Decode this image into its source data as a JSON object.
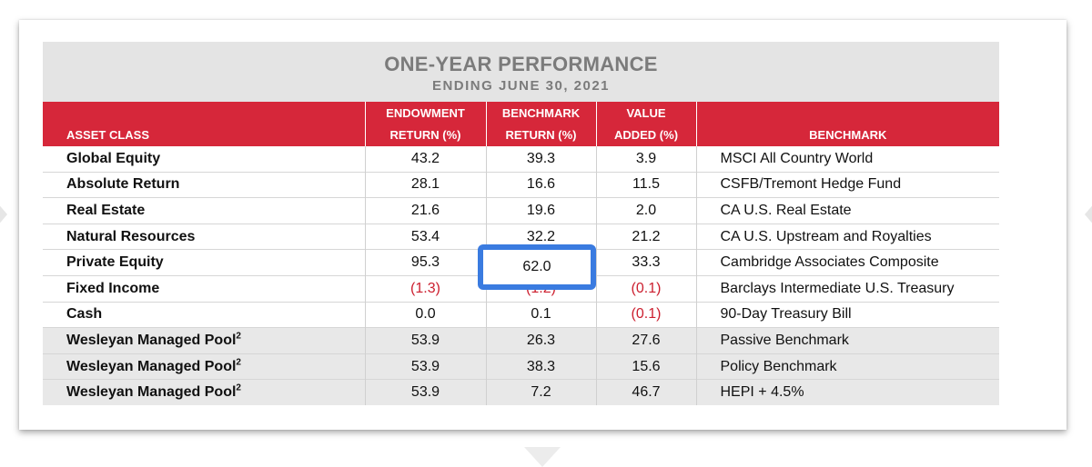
{
  "table": {
    "title": "ONE-YEAR PERFORMANCE",
    "subtitle": "ENDING JUNE 30, 2021",
    "headers": [
      [
        "ASSET CLASS"
      ],
      [
        "ENDOWMENT",
        "RETURN (%)"
      ],
      [
        "BENCHMARK",
        "RETURN (%)"
      ],
      [
        "VALUE",
        "ADDED (%)"
      ],
      [
        "BENCHMARK"
      ]
    ],
    "rows": [
      {
        "asset": "Global Equity",
        "sup": "",
        "endowment": "43.2",
        "benchmark_return": "39.3",
        "value_added": "3.9",
        "benchmark": "MSCI All Country World"
      },
      {
        "asset": "Absolute Return",
        "sup": "",
        "endowment": "28.1",
        "benchmark_return": "16.6",
        "value_added": "11.5",
        "benchmark": "CSFB/Tremont Hedge Fund"
      },
      {
        "asset": "Real Estate",
        "sup": "",
        "endowment": "21.6",
        "benchmark_return": "19.6",
        "value_added": "2.0",
        "benchmark": "CA U.S. Real Estate"
      },
      {
        "asset": "Natural Resources",
        "sup": "",
        "endowment": "53.4",
        "benchmark_return": "32.2",
        "value_added": "21.2",
        "benchmark": "CA U.S. Upstream and Royalties"
      },
      {
        "asset": "Private Equity",
        "sup": "",
        "endowment": "95.3",
        "benchmark_return": "62.0",
        "value_added": "33.3",
        "benchmark": "Cambridge Associates Composite"
      },
      {
        "asset": "Fixed Income",
        "sup": "",
        "endowment": "(1.3)",
        "benchmark_return": "(1.2)",
        "value_added": "(0.1)",
        "benchmark": "Barclays Intermediate U.S. Treasury"
      },
      {
        "asset": "Cash",
        "sup": "",
        "endowment": "0.0",
        "benchmark_return": "0.1",
        "value_added": "(0.1)",
        "benchmark": "90-Day Treasury Bill"
      },
      {
        "asset": "Wesleyan Managed Pool",
        "sup": "2",
        "endowment": "53.9",
        "benchmark_return": "26.3",
        "value_added": "27.6",
        "benchmark": "Passive Benchmark"
      },
      {
        "asset": "Wesleyan Managed Pool",
        "sup": "2",
        "endowment": "53.9",
        "benchmark_return": "38.3",
        "value_added": "15.6",
        "benchmark": "Policy Benchmark"
      },
      {
        "asset": "Wesleyan Managed Pool",
        "sup": "2",
        "endowment": "53.9",
        "benchmark_return": "7.2",
        "value_added": "46.7",
        "benchmark": "HEPI + 4.5%"
      }
    ]
  },
  "highlight": {
    "value": "62.0",
    "color": "#3a7be0"
  },
  "colors": {
    "header_red": "#d6273a",
    "negative_red": "#cc1f2f",
    "title_gray": "#7b7b7b",
    "pool_row_bg": "#e8e8e8"
  }
}
